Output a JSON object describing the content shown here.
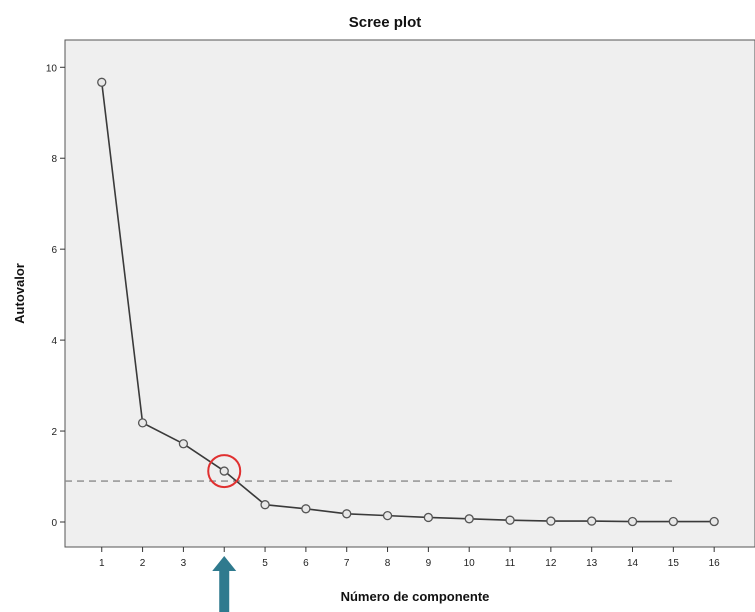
{
  "chart_data": {
    "type": "line",
    "title": "Scree plot",
    "xlabel": "Número de componente",
    "ylabel": "Autovalor",
    "x": [
      1,
      2,
      3,
      4,
      5,
      6,
      7,
      8,
      9,
      10,
      11,
      12,
      13,
      14,
      15,
      16
    ],
    "values": [
      9.67,
      2.18,
      1.72,
      1.12,
      0.38,
      0.29,
      0.18,
      0.14,
      0.1,
      0.07,
      0.04,
      0.02,
      0.02,
      0.01,
      0.01,
      0.01
    ],
    "xlim": [
      0.1,
      17.0
    ],
    "ylim": [
      -0.55,
      10.6
    ],
    "yticks": [
      0,
      2,
      4,
      6,
      8,
      10
    ],
    "reference_line": {
      "y": 0.9,
      "x_from": 0.1,
      "x_to": 15.0,
      "style": "dashed"
    },
    "highlight": {
      "x": 4,
      "marker": "circle",
      "color": "#e03030"
    },
    "arrow": {
      "x": 4,
      "direction": "up",
      "color": "#2f7a8e"
    },
    "grid": false,
    "colors": {
      "plot_background": "#efefef",
      "line": "#3a3a3a",
      "marker": "#555555",
      "reference": "#8a8a8a"
    }
  }
}
